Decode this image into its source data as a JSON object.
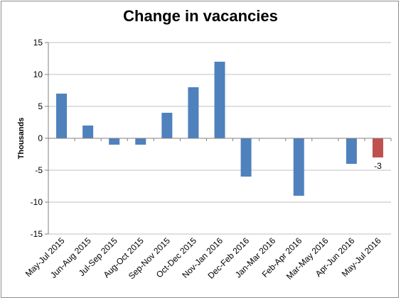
{
  "chart_data": {
    "type": "bar",
    "title": "Change in vacancies",
    "xlabel": "",
    "ylabel": "Thousands",
    "ylim": [
      -15,
      15
    ],
    "yticks": [
      -15,
      -10,
      -5,
      0,
      5,
      10,
      15
    ],
    "grid": true,
    "categories": [
      "May-Jul 2015",
      "Jun-Aug 2015",
      "Jul-Sep 2015",
      "Aug-Oct 2015",
      "Sep-Nov 2015",
      "Oct-Dec 2015",
      "Nov-Jan 2016",
      "Dec-Feb 2016",
      "Jan-Mar 2016",
      "Feb-Apr 2016",
      "Mar-May 2016",
      "Apr-Jun 2016",
      "May-Jul 2016"
    ],
    "values": [
      7,
      2,
      -1,
      -1,
      4,
      8,
      12,
      -6,
      0,
      -9,
      0,
      -4,
      -3
    ],
    "colors": {
      "default": "#4f81bd",
      "highlight": "#c0504d",
      "grid": "#c0c0c0",
      "axis": "#808080"
    },
    "highlight_index": 12,
    "data_labels": [
      {
        "index": 12,
        "text": "-3"
      }
    ]
  }
}
